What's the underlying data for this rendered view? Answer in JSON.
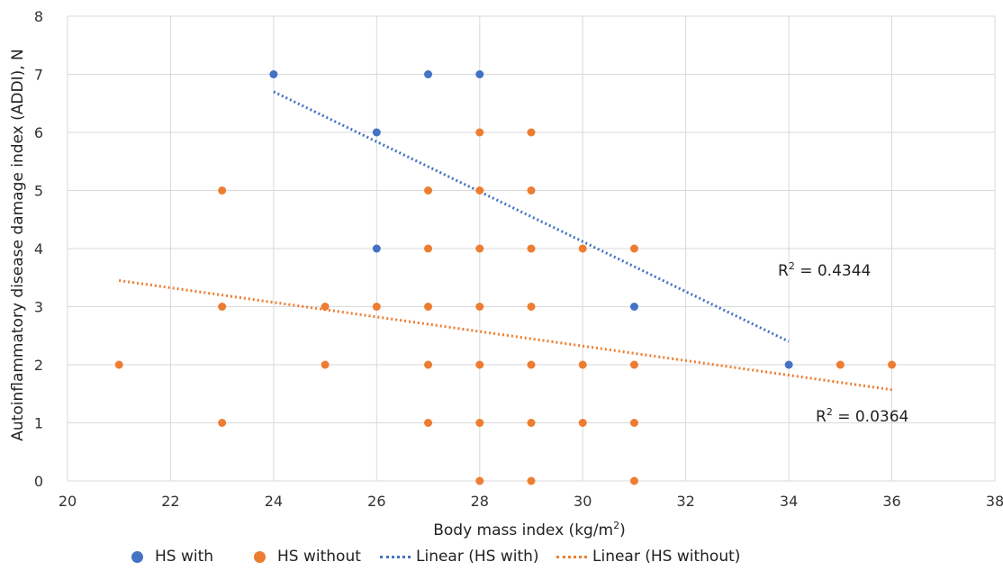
{
  "chart_data": {
    "type": "scatter",
    "xlabel_main": "Body mass index (kg/m",
    "xlabel_sup": "2",
    "xlabel_end": ")",
    "ylabel": "Autoinflammatory disease damage index (ADDI), N",
    "xlim": [
      20,
      38
    ],
    "ylim": [
      0,
      8
    ],
    "xticks": [
      20,
      22,
      24,
      26,
      28,
      30,
      32,
      34,
      36,
      38
    ],
    "yticks": [
      0,
      1,
      2,
      3,
      4,
      5,
      6,
      7,
      8
    ],
    "grid": true,
    "legend_position": "bottom",
    "series": [
      {
        "name": "HS with",
        "color": "#4472C4",
        "points": [
          [
            24,
            7
          ],
          [
            27,
            7
          ],
          [
            28,
            7
          ],
          [
            26,
            6
          ],
          [
            26,
            4
          ],
          [
            31,
            3
          ],
          [
            34,
            2
          ]
        ]
      },
      {
        "name": "HS without",
        "color": "#ED7D31",
        "points": [
          [
            21,
            2
          ],
          [
            23,
            5
          ],
          [
            23,
            3
          ],
          [
            23,
            1
          ],
          [
            25,
            3
          ],
          [
            25,
            2
          ],
          [
            26,
            3
          ],
          [
            27,
            5
          ],
          [
            27,
            4
          ],
          [
            27,
            3
          ],
          [
            27,
            2
          ],
          [
            27,
            1
          ],
          [
            28,
            6
          ],
          [
            28,
            5
          ],
          [
            28,
            4
          ],
          [
            28,
            3
          ],
          [
            28,
            2
          ],
          [
            28,
            1
          ],
          [
            28,
            0
          ],
          [
            29,
            6
          ],
          [
            29,
            5
          ],
          [
            29,
            4
          ],
          [
            29,
            3
          ],
          [
            29,
            2
          ],
          [
            29,
            1
          ],
          [
            29,
            0
          ],
          [
            30,
            4
          ],
          [
            30,
            2
          ],
          [
            30,
            1
          ],
          [
            31,
            4
          ],
          [
            31,
            2
          ],
          [
            31,
            1
          ],
          [
            31,
            0
          ],
          [
            35,
            2
          ],
          [
            36,
            2
          ]
        ]
      }
    ],
    "trendlines": [
      {
        "name": "Linear (HS with)",
        "color": "#4472C4",
        "x_range": [
          24,
          34
        ],
        "y_range": [
          6.7,
          2.4
        ],
        "r2_label": "R",
        "r2_sup": "2",
        "r2_value": " = 0.4344"
      },
      {
        "name": "Linear (HS without)",
        "color": "#ED7D31",
        "x_range": [
          21,
          36
        ],
        "y_range": [
          3.45,
          1.57
        ],
        "r2_label": "R",
        "r2_sup": "2",
        "r2_value": " = 0.0364"
      }
    ]
  }
}
